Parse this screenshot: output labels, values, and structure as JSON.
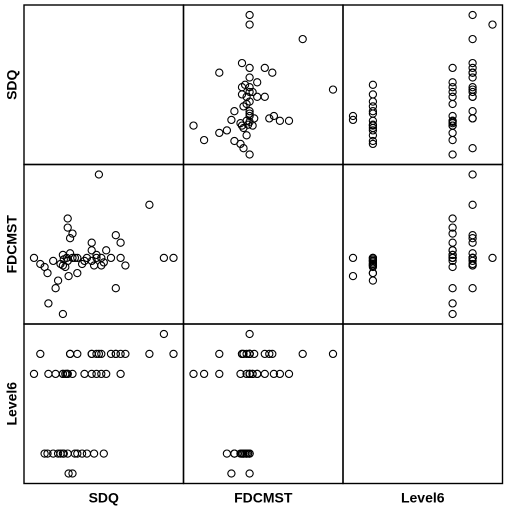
{
  "chart_data": {
    "type": "scatter",
    "variables": [
      "SDQ",
      "FDCMST",
      "Level6"
    ],
    "grid": false,
    "point_style": "open-circle",
    "observations": [
      {
        "SDQ": 1,
        "FDCMST": 43,
        "Level6": 5
      },
      {
        "SDQ": 2.3,
        "FDCMST": 42.6,
        "Level6": 6
      },
      {
        "SDQ": 3.2,
        "FDCMST": 42.4,
        "Level6": 1
      },
      {
        "SDQ": 3.8,
        "FDCMST": 42,
        "Level6": 1
      },
      {
        "SDQ": 4,
        "FDCMST": 40,
        "Level6": 5
      },
      {
        "SDQ": 5,
        "FDCMST": 42.8,
        "Level6": 1
      },
      {
        "SDQ": 5.5,
        "FDCMST": 41,
        "Level6": 5
      },
      {
        "SDQ": 6,
        "FDCMST": 41.5,
        "Level6": 1
      },
      {
        "SDQ": 6.5,
        "FDCMST": 42.6,
        "Level6": 1
      },
      {
        "SDQ": 7,
        "FDCMST": 43.2,
        "Level6": 5
      },
      {
        "SDQ": 7,
        "FDCMST": 39.3,
        "Level6": 5
      },
      {
        "SDQ": 7,
        "FDCMST": 42.5,
        "Level6": 1
      },
      {
        "SDQ": 7.2,
        "FDCMST": 42.9,
        "Level6": 1
      },
      {
        "SDQ": 7.5,
        "FDCMST": 42.4,
        "Level6": 5
      },
      {
        "SDQ": 7.8,
        "FDCMST": 43,
        "Level6": 5
      },
      {
        "SDQ": 8,
        "FDCMST": 42.8,
        "Level6": 1
      },
      {
        "SDQ": 8.5,
        "FDCMST": 43.3,
        "Level6": 6
      },
      {
        "SDQ": 8.2,
        "FDCMST": 41.8,
        "Level6": 0
      },
      {
        "SDQ": 8,
        "FDCMST": 45.6,
        "Level6": 5
      },
      {
        "SDQ": 8,
        "FDCMST": 45,
        "Level6": 5
      },
      {
        "SDQ": 8.5,
        "FDCMST": 44.3,
        "Level6": 6
      },
      {
        "SDQ": 9,
        "FDCMST": 44.6,
        "Level6": 5
      },
      {
        "SDQ": 9.5,
        "FDCMST": 43,
        "Level6": 1
      },
      {
        "SDQ": 10,
        "FDCMST": 42,
        "Level6": 1
      },
      {
        "SDQ": 9,
        "FDCMST": 43,
        "Level6": 0
      },
      {
        "SDQ": 10,
        "FDCMST": 43,
        "Level6": 6
      },
      {
        "SDQ": 11,
        "FDCMST": 42.6,
        "Level6": 1
      },
      {
        "SDQ": 11.5,
        "FDCMST": 42.8,
        "Level6": 5
      },
      {
        "SDQ": 12,
        "FDCMST": 43,
        "Level6": 1
      },
      {
        "SDQ": 13,
        "FDCMST": 42.8,
        "Level6": 6
      },
      {
        "SDQ": 13,
        "FDCMST": 43.5,
        "Level6": 5
      },
      {
        "SDQ": 13,
        "FDCMST": 44,
        "Level6": 6
      },
      {
        "SDQ": 13.5,
        "FDCMST": 42.5,
        "Level6": 1
      },
      {
        "SDQ": 14,
        "FDCMST": 43,
        "Level6": 6
      },
      {
        "SDQ": 15,
        "FDCMST": 43,
        "Level6": 5
      },
      {
        "SDQ": 14,
        "FDCMST": 43.2,
        "Level6": 5
      },
      {
        "SDQ": 14.5,
        "FDCMST": 48.5,
        "Level6": 6
      },
      {
        "SDQ": 15,
        "FDCMST": 42.5,
        "Level6": 6
      },
      {
        "SDQ": 15.5,
        "FDCMST": 42.7,
        "Level6": 1
      },
      {
        "SDQ": 16,
        "FDCMST": 43.5,
        "Level6": 5
      },
      {
        "SDQ": 17,
        "FDCMST": 43,
        "Level6": 6
      },
      {
        "SDQ": 18,
        "FDCMST": 41,
        "Level6": 6
      },
      {
        "SDQ": 18,
        "FDCMST": 44.5,
        "Level6": 6
      },
      {
        "SDQ": 19,
        "FDCMST": 44,
        "Level6": 5
      },
      {
        "SDQ": 19,
        "FDCMST": 43,
        "Level6": 6
      },
      {
        "SDQ": 20,
        "FDCMST": 42.5,
        "Level6": 6
      },
      {
        "SDQ": 25,
        "FDCMST": 46.5,
        "Level6": 6
      },
      {
        "SDQ": 28,
        "FDCMST": 43,
        "Level6": 7
      },
      {
        "SDQ": 30,
        "FDCMST": 43,
        "Level6": 6
      }
    ]
  }
}
